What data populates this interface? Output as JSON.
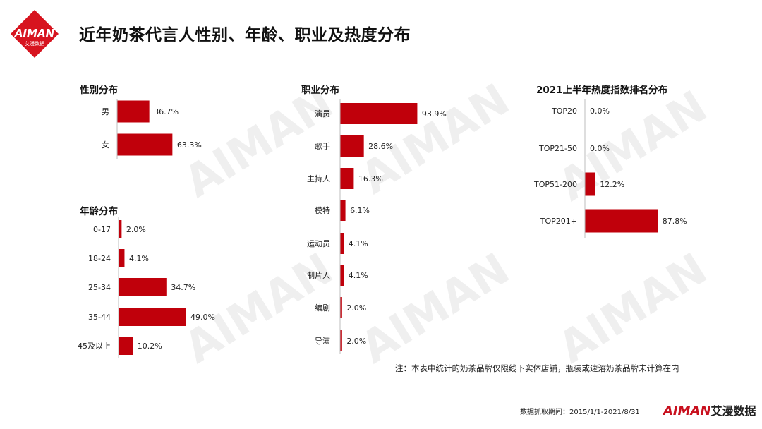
{
  "header": {
    "title": "近年奶茶代言人性别、年龄、职业及热度分布",
    "logo_text": "AIMAN",
    "logo_sub": "艾漫数据"
  },
  "colors": {
    "bar": "#c0000b",
    "accent": "#d7141f",
    "axis": "#bdbdbd"
  },
  "chart_data": [
    {
      "id": "gender",
      "type": "bar",
      "orientation": "horizontal",
      "title": "性别分布",
      "categories": [
        "男",
        "女"
      ],
      "values": [
        36.7,
        63.3
      ],
      "value_labels": [
        "36.7%",
        "63.3%"
      ],
      "unit": "%"
    },
    {
      "id": "age",
      "type": "bar",
      "orientation": "horizontal",
      "title": "年龄分布",
      "categories": [
        "0-17",
        "18-24",
        "25-34",
        "35-44",
        "45及以上"
      ],
      "values": [
        2.0,
        4.1,
        34.7,
        49.0,
        10.2
      ],
      "value_labels": [
        "2.0%",
        "4.1%",
        "34.7%",
        "49.0%",
        "10.2%"
      ],
      "unit": "%"
    },
    {
      "id": "occupation",
      "type": "bar",
      "orientation": "horizontal",
      "title": "职业分布",
      "categories": [
        "演员",
        "歌手",
        "主持人",
        "模特",
        "运动员",
        "制片人",
        "编剧",
        "导演"
      ],
      "values": [
        93.9,
        28.6,
        16.3,
        6.1,
        4.1,
        4.1,
        2.0,
        2.0
      ],
      "value_labels": [
        "93.9%",
        "28.6%",
        "16.3%",
        "6.1%",
        "4.1%",
        "4.1%",
        "2.0%",
        "2.0%"
      ],
      "unit": "%"
    },
    {
      "id": "heat",
      "type": "bar",
      "orientation": "horizontal",
      "title": "2021上半年热度指数排名分布",
      "categories": [
        "TOP20",
        "TOP21-50",
        "TOP51-200",
        "TOP201+"
      ],
      "values": [
        0.0,
        0.0,
        12.2,
        87.8
      ],
      "value_labels": [
        "0.0%",
        "0.0%",
        "12.2%",
        "87.8%"
      ],
      "unit": "%"
    }
  ],
  "footnote": "注：本表中统计的奶茶品牌仅限线下实体店铺，瓶装或速溶奶茶品牌未计算在内",
  "footer": {
    "date_range": "数据抓取期间：2015/1/1-2021/8/31",
    "brand_en": "AIMAN",
    "brand_cn": "艾漫数据"
  },
  "watermark": {
    "text": "AIMAN",
    "sub": "艾漫数据"
  }
}
